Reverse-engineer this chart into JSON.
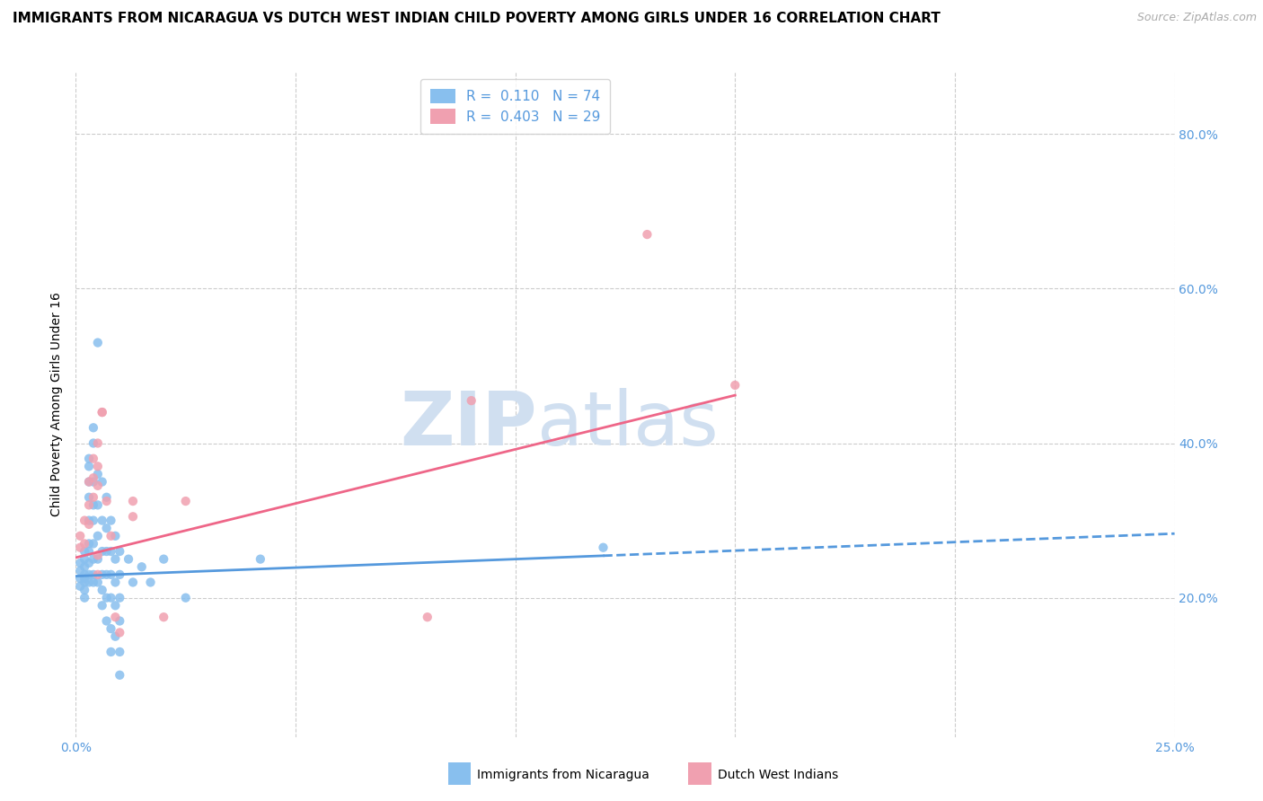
{
  "title": "IMMIGRANTS FROM NICARAGUA VS DUTCH WEST INDIAN CHILD POVERTY AMONG GIRLS UNDER 16 CORRELATION CHART",
  "source": "Source: ZipAtlas.com",
  "ylabel": "Child Poverty Among Girls Under 16",
  "xlim": [
    0.0,
    0.25
  ],
  "ylim": [
    0.02,
    0.88
  ],
  "xtick_positions": [
    0.0,
    0.05,
    0.1,
    0.15,
    0.2,
    0.25
  ],
  "xticklabels": [
    "0.0%",
    "",
    "",
    "",
    "",
    "25.0%"
  ],
  "yticks_right": [
    0.2,
    0.4,
    0.6,
    0.8
  ],
  "ytick_labels_right": [
    "20.0%",
    "40.0%",
    "60.0%",
    "80.0%"
  ],
  "grid_color": "#cccccc",
  "background_color": "#ffffff",
  "blue_color": "#88bfee",
  "pink_color": "#f0a0b0",
  "blue_scatter": [
    [
      0.001,
      0.245
    ],
    [
      0.001,
      0.235
    ],
    [
      0.001,
      0.225
    ],
    [
      0.001,
      0.215
    ],
    [
      0.002,
      0.26
    ],
    [
      0.002,
      0.25
    ],
    [
      0.002,
      0.24
    ],
    [
      0.002,
      0.23
    ],
    [
      0.002,
      0.225
    ],
    [
      0.002,
      0.22
    ],
    [
      0.002,
      0.21
    ],
    [
      0.002,
      0.2
    ],
    [
      0.003,
      0.38
    ],
    [
      0.003,
      0.37
    ],
    [
      0.003,
      0.35
    ],
    [
      0.003,
      0.33
    ],
    [
      0.003,
      0.3
    ],
    [
      0.003,
      0.27
    ],
    [
      0.003,
      0.26
    ],
    [
      0.003,
      0.245
    ],
    [
      0.003,
      0.23
    ],
    [
      0.003,
      0.22
    ],
    [
      0.004,
      0.42
    ],
    [
      0.004,
      0.4
    ],
    [
      0.004,
      0.35
    ],
    [
      0.004,
      0.32
    ],
    [
      0.004,
      0.3
    ],
    [
      0.004,
      0.27
    ],
    [
      0.004,
      0.25
    ],
    [
      0.004,
      0.23
    ],
    [
      0.004,
      0.22
    ],
    [
      0.005,
      0.53
    ],
    [
      0.005,
      0.36
    ],
    [
      0.005,
      0.32
    ],
    [
      0.005,
      0.28
    ],
    [
      0.005,
      0.25
    ],
    [
      0.005,
      0.22
    ],
    [
      0.006,
      0.35
    ],
    [
      0.006,
      0.3
    ],
    [
      0.006,
      0.26
    ],
    [
      0.006,
      0.23
    ],
    [
      0.006,
      0.21
    ],
    [
      0.006,
      0.19
    ],
    [
      0.007,
      0.33
    ],
    [
      0.007,
      0.29
    ],
    [
      0.007,
      0.26
    ],
    [
      0.007,
      0.23
    ],
    [
      0.007,
      0.2
    ],
    [
      0.007,
      0.17
    ],
    [
      0.008,
      0.3
    ],
    [
      0.008,
      0.26
    ],
    [
      0.008,
      0.23
    ],
    [
      0.008,
      0.2
    ],
    [
      0.008,
      0.16
    ],
    [
      0.008,
      0.13
    ],
    [
      0.009,
      0.28
    ],
    [
      0.009,
      0.25
    ],
    [
      0.009,
      0.22
    ],
    [
      0.009,
      0.19
    ],
    [
      0.009,
      0.15
    ],
    [
      0.01,
      0.26
    ],
    [
      0.01,
      0.23
    ],
    [
      0.01,
      0.2
    ],
    [
      0.01,
      0.17
    ],
    [
      0.01,
      0.13
    ],
    [
      0.01,
      0.1
    ],
    [
      0.012,
      0.25
    ],
    [
      0.013,
      0.22
    ],
    [
      0.015,
      0.24
    ],
    [
      0.017,
      0.22
    ],
    [
      0.02,
      0.25
    ],
    [
      0.025,
      0.2
    ],
    [
      0.042,
      0.25
    ],
    [
      0.12,
      0.265
    ]
  ],
  "pink_scatter": [
    [
      0.001,
      0.28
    ],
    [
      0.001,
      0.265
    ],
    [
      0.002,
      0.3
    ],
    [
      0.002,
      0.27
    ],
    [
      0.003,
      0.35
    ],
    [
      0.003,
      0.32
    ],
    [
      0.003,
      0.295
    ],
    [
      0.004,
      0.38
    ],
    [
      0.004,
      0.355
    ],
    [
      0.004,
      0.33
    ],
    [
      0.005,
      0.4
    ],
    [
      0.005,
      0.37
    ],
    [
      0.005,
      0.345
    ],
    [
      0.005,
      0.255
    ],
    [
      0.005,
      0.23
    ],
    [
      0.006,
      0.44
    ],
    [
      0.006,
      0.44
    ],
    [
      0.007,
      0.325
    ],
    [
      0.008,
      0.28
    ],
    [
      0.009,
      0.175
    ],
    [
      0.01,
      0.155
    ],
    [
      0.013,
      0.325
    ],
    [
      0.013,
      0.305
    ],
    [
      0.02,
      0.175
    ],
    [
      0.025,
      0.325
    ],
    [
      0.08,
      0.175
    ],
    [
      0.09,
      0.455
    ],
    [
      0.15,
      0.475
    ],
    [
      0.13,
      0.67
    ]
  ],
  "R_blue": 0.11,
  "N_blue": 74,
  "R_pink": 0.403,
  "N_pink": 29,
  "legend_label_blue": "Immigrants from Nicaragua",
  "legend_label_pink": "Dutch West Indians",
  "title_fontsize": 11,
  "axis_label_fontsize": 10,
  "tick_fontsize": 10,
  "legend_fontsize": 11,
  "watermark": "ZIPatlas",
  "watermark_color": "#d0dff0",
  "blue_line_color": "#5599dd",
  "pink_line_color": "#ee6688",
  "blue_text_color": "#5599dd",
  "source_color": "#aaaaaa",
  "blue_line_intercept": 0.228,
  "blue_line_slope": 0.22,
  "pink_line_intercept": 0.252,
  "pink_line_slope": 1.4
}
